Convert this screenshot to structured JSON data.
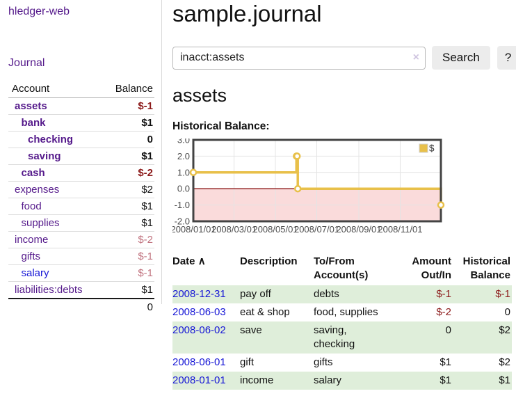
{
  "colors": {
    "link_purple": "#551a8b",
    "link_blue": "#1717d6",
    "negative_bold": "#8c1a1a",
    "negative_muted": "#c1737f",
    "row_green": "#dfeeda",
    "chart_gold": "#e8c04a",
    "chart_pink": "#fadbdb",
    "chart_zero_line": "#8b1515",
    "chart_border": "#434343",
    "chart_grid": "#e4e4e4"
  },
  "sidebar": {
    "app_title": "hledger-web",
    "journal_link": "Journal",
    "accounts_table": {
      "header_account": "Account",
      "header_balance": "Balance",
      "rows": [
        {
          "name": "assets",
          "balance": "$-1",
          "level": 0,
          "bold": true,
          "balance_style": "neg-bold",
          "link": "purple"
        },
        {
          "name": "bank",
          "balance": "$1",
          "level": 1,
          "bold": true,
          "balance_style": "bold",
          "link": "purple"
        },
        {
          "name": "checking",
          "balance": "0",
          "level": 2,
          "bold": true,
          "balance_style": "bold",
          "link": "purple"
        },
        {
          "name": "saving",
          "balance": "$1",
          "level": 2,
          "bold": true,
          "balance_style": "bold",
          "link": "purple"
        },
        {
          "name": "cash",
          "balance": "$-2",
          "level": 1,
          "bold": true,
          "balance_style": "neg-bold",
          "link": "purple"
        },
        {
          "name": "expenses",
          "balance": "$2",
          "level": 0,
          "bold": false,
          "balance_style": "plain",
          "link": "purple"
        },
        {
          "name": "food",
          "balance": "$1",
          "level": 1,
          "bold": false,
          "balance_style": "plain",
          "link": "purple"
        },
        {
          "name": "supplies",
          "balance": "$1",
          "level": 1,
          "bold": false,
          "balance_style": "plain",
          "link": "purple"
        },
        {
          "name": "income",
          "balance": "$-2",
          "level": 0,
          "bold": false,
          "balance_style": "neg",
          "link": "purple"
        },
        {
          "name": "gifts",
          "balance": "$-1",
          "level": 1,
          "bold": false,
          "balance_style": "neg",
          "link": "purple"
        },
        {
          "name": "salary",
          "balance": "$-1",
          "level": 1,
          "bold": false,
          "balance_style": "neg",
          "link": "blue"
        },
        {
          "name": "liabilities:debts",
          "balance": "$1",
          "level": 0,
          "bold": false,
          "balance_style": "plain",
          "link": "purple"
        }
      ],
      "total": "0"
    }
  },
  "main": {
    "title": "sample.journal",
    "search": {
      "value": "inacct:assets",
      "clear_icon": "×",
      "search_button": "Search",
      "help_button": "?"
    },
    "account_heading": "assets",
    "chart_label": "Historical Balance:",
    "register_table": {
      "headers": {
        "date": "Date",
        "description": "Description",
        "accounts": "To/From Account(s)",
        "amount": "Amount Out/In",
        "balance": "Historical Balance"
      },
      "sort_icon": "∧",
      "rows": [
        {
          "date": "2008-12-31",
          "description": "pay off",
          "accounts": "debts",
          "amount": "$-1",
          "amount_neg": true,
          "balance": "$-1",
          "balance_neg": true,
          "shaded": true
        },
        {
          "date": "2008-06-03",
          "description": "eat & shop",
          "accounts": "food, supplies",
          "amount": "$-2",
          "amount_neg": true,
          "balance": "0",
          "balance_neg": false,
          "shaded": false
        },
        {
          "date": "2008-06-02",
          "description": "save",
          "accounts": "saving,\ncheckin g",
          "accounts_lines": [
            "saving,",
            "checking"
          ],
          "amount": "0",
          "amount_neg": false,
          "balance": "$2",
          "balance_neg": false,
          "shaded": true
        },
        {
          "date": "2008-06-01",
          "description": "gift",
          "accounts": "gifts",
          "amount": "$1",
          "amount_neg": false,
          "balance": "$2",
          "balance_neg": false,
          "shaded": false
        },
        {
          "date": "2008-01-01",
          "description": "income",
          "accounts": "salary",
          "amount": "$1",
          "amount_neg": false,
          "balance": "$1",
          "balance_neg": false,
          "shaded": true
        }
      ]
    }
  },
  "chart_data": {
    "type": "line",
    "step": true,
    "title": "Historical Balance:",
    "legend": [
      {
        "label": "$",
        "color": "#e8c04a"
      }
    ],
    "legend_position": "top-right",
    "grid": true,
    "ylim": [
      -2,
      3
    ],
    "y_ticks": [
      3.0,
      2.0,
      1.0,
      0.0,
      -1.0,
      -2.0
    ],
    "x_span_days": 365,
    "x_ticks": [
      {
        "label": "2008/01/01",
        "day": 0
      },
      {
        "label": "2008/03/01",
        "day": 60
      },
      {
        "label": "2008/05/01",
        "day": 121
      },
      {
        "label": "2008/07/01",
        "day": 182
      },
      {
        "label": "2008/09/01",
        "day": 244
      },
      {
        "label": "2008/11/01",
        "day": 305
      }
    ],
    "series": [
      {
        "name": "$",
        "points": [
          {
            "date": "2008-01-01",
            "day": 0,
            "value": 1
          },
          {
            "date": "2008-06-01",
            "day": 152,
            "value": 2
          },
          {
            "date": "2008-06-02",
            "day": 153,
            "value": 2
          },
          {
            "date": "2008-06-03",
            "day": 154,
            "value": 0
          },
          {
            "date": "2008-12-31",
            "day": 365,
            "value": -1
          }
        ]
      }
    ],
    "negative_region_shaded": true
  }
}
